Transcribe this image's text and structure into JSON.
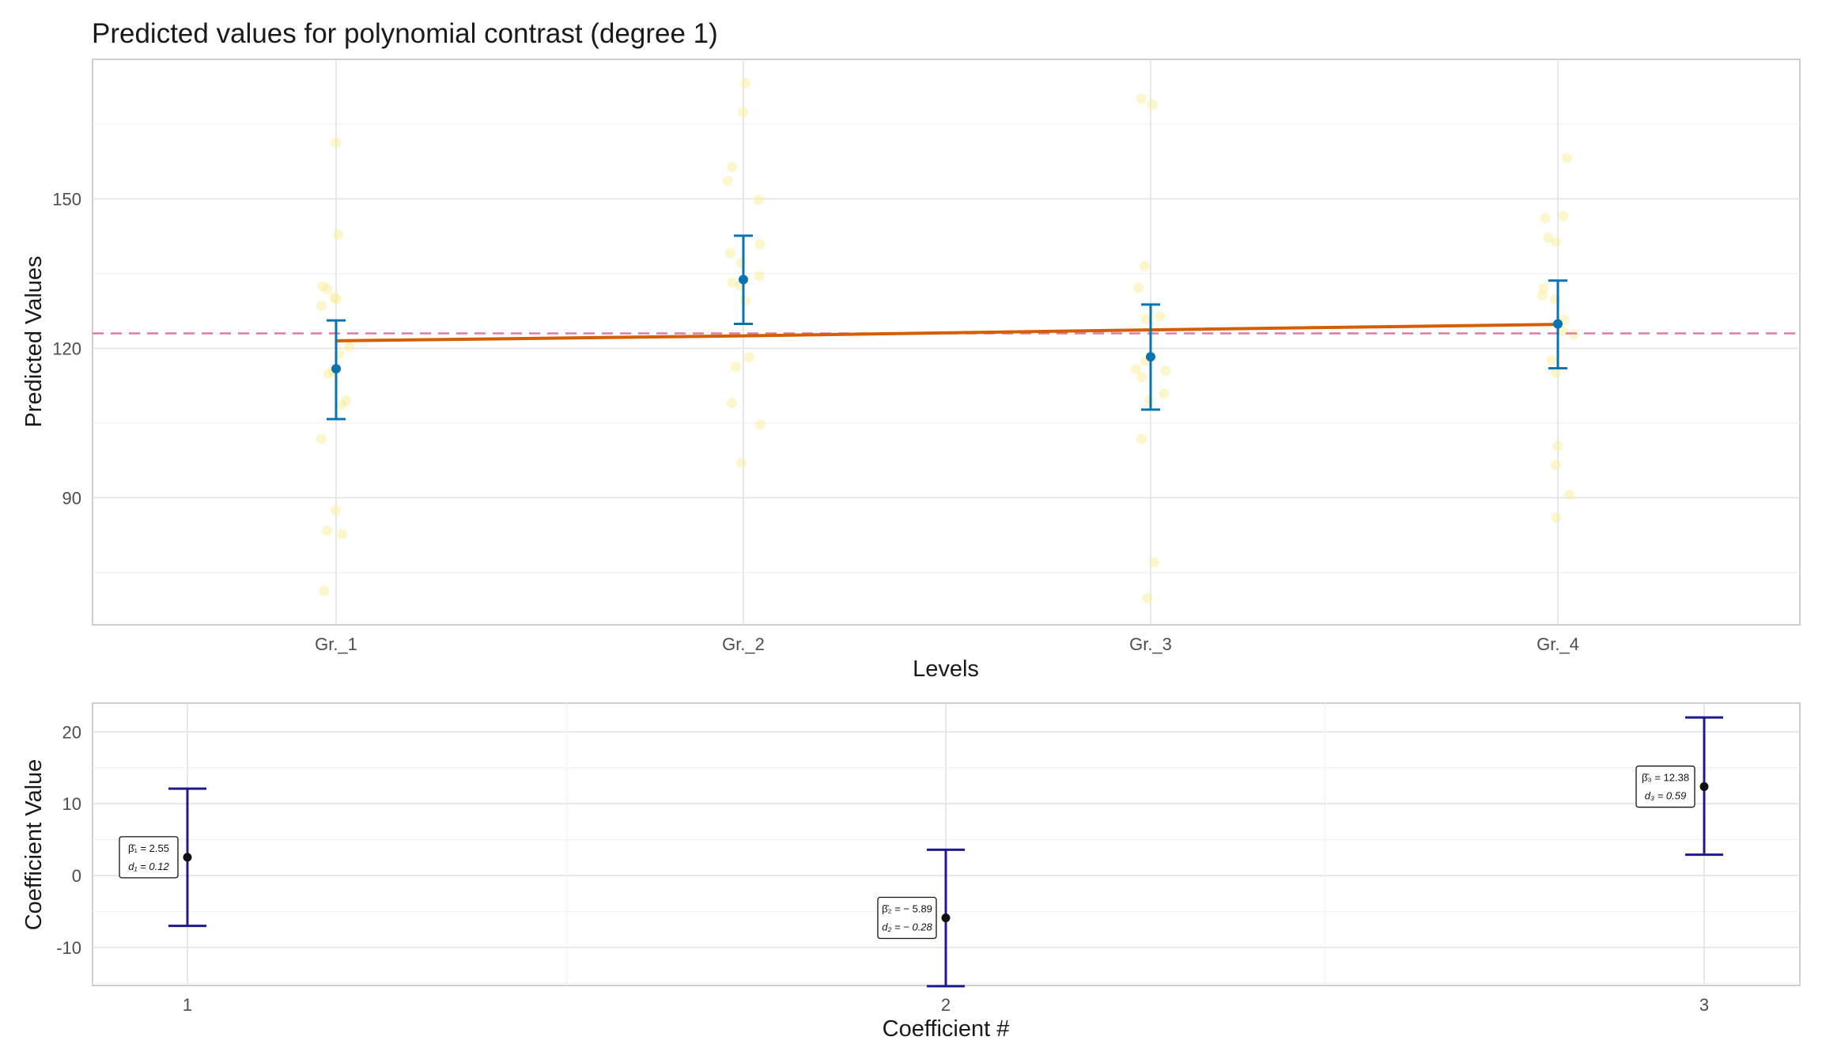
{
  "chart_data": [
    {
      "type": "scatter",
      "title": "Predicted values for polynomial contrast (degree 1)",
      "xlabel": "Levels",
      "ylabel": "Predicted Values",
      "categories": [
        "Gr._1",
        "Gr._2",
        "Gr._3",
        "Gr._4"
      ],
      "ylim": [
        64.5,
        178
      ],
      "yticks": [
        90,
        120,
        150
      ],
      "grid": true,
      "reference_line": {
        "value": 123,
        "style": "dashed",
        "color": "#e07aa4"
      },
      "trend_line": {
        "values": [
          121.5,
          122.5,
          123.7,
          124.8
        ],
        "color": "#d55e00"
      },
      "means": [
        {
          "category": "Gr._1",
          "mean": 115.9,
          "lower": 105.8,
          "upper": 125.6
        },
        {
          "category": "Gr._2",
          "mean": 133.8,
          "lower": 124.9,
          "upper": 142.6
        },
        {
          "category": "Gr._3",
          "mean": 118.3,
          "lower": 107.7,
          "upper": 128.8
        },
        {
          "category": "Gr._4",
          "mean": 124.9,
          "lower": 116.0,
          "upper": 133.6
        }
      ],
      "points": [
        {
          "x": 1,
          "y": 161.3
        },
        {
          "x": 1,
          "y": 142.8
        },
        {
          "x": 1,
          "y": 132.4
        },
        {
          "x": 1,
          "y": 131.9
        },
        {
          "x": 1,
          "y": 130.2
        },
        {
          "x": 1,
          "y": 129.8
        },
        {
          "x": 1,
          "y": 128.5
        },
        {
          "x": 1,
          "y": 120.3
        },
        {
          "x": 1,
          "y": 118.9
        },
        {
          "x": 1,
          "y": 115.4
        },
        {
          "x": 1,
          "y": 114.9
        },
        {
          "x": 1,
          "y": 109.5
        },
        {
          "x": 1,
          "y": 108.6
        },
        {
          "x": 1,
          "y": 101.8
        },
        {
          "x": 1,
          "y": 87.5
        },
        {
          "x": 1,
          "y": 83.4
        },
        {
          "x": 1,
          "y": 82.7
        },
        {
          "x": 1,
          "y": 71.3
        },
        {
          "x": 2,
          "y": 173.2
        },
        {
          "x": 2,
          "y": 167.4
        },
        {
          "x": 2,
          "y": 156.4
        },
        {
          "x": 2,
          "y": 153.6
        },
        {
          "x": 2,
          "y": 149.8
        },
        {
          "x": 2,
          "y": 140.9
        },
        {
          "x": 2,
          "y": 139.1
        },
        {
          "x": 2,
          "y": 137.2
        },
        {
          "x": 2,
          "y": 134.5
        },
        {
          "x": 2,
          "y": 133.2
        },
        {
          "x": 2,
          "y": 132.6
        },
        {
          "x": 2,
          "y": 129.5
        },
        {
          "x": 2,
          "y": 118.2
        },
        {
          "x": 2,
          "y": 116.3
        },
        {
          "x": 2,
          "y": 109.0
        },
        {
          "x": 2,
          "y": 104.7
        },
        {
          "x": 2,
          "y": 97.0
        },
        {
          "x": 3,
          "y": 170.1
        },
        {
          "x": 3,
          "y": 168.9
        },
        {
          "x": 3,
          "y": 136.5
        },
        {
          "x": 3,
          "y": 132.1
        },
        {
          "x": 3,
          "y": 126.4
        },
        {
          "x": 3,
          "y": 125.9
        },
        {
          "x": 3,
          "y": 117.4
        },
        {
          "x": 3,
          "y": 115.8
        },
        {
          "x": 3,
          "y": 115.5
        },
        {
          "x": 3,
          "y": 114.2
        },
        {
          "x": 3,
          "y": 110.9
        },
        {
          "x": 3,
          "y": 109.6
        },
        {
          "x": 3,
          "y": 101.8
        },
        {
          "x": 3,
          "y": 77.0
        },
        {
          "x": 3,
          "y": 69.8
        },
        {
          "x": 4,
          "y": 158.2
        },
        {
          "x": 4,
          "y": 146.5
        },
        {
          "x": 4,
          "y": 146.1
        },
        {
          "x": 4,
          "y": 142.2
        },
        {
          "x": 4,
          "y": 141.3
        },
        {
          "x": 4,
          "y": 132.0
        },
        {
          "x": 4,
          "y": 130.6
        },
        {
          "x": 4,
          "y": 129.8
        },
        {
          "x": 4,
          "y": 125.7
        },
        {
          "x": 4,
          "y": 123.4
        },
        {
          "x": 4,
          "y": 122.8
        },
        {
          "x": 4,
          "y": 117.6
        },
        {
          "x": 4,
          "y": 115.1
        },
        {
          "x": 4,
          "y": 100.4
        },
        {
          "x": 4,
          "y": 96.6
        },
        {
          "x": 4,
          "y": 90.6
        },
        {
          "x": 4,
          "y": 86.0
        }
      ],
      "colors": {
        "points": "#f6ec8e",
        "means": "#0a73b0",
        "panel_border": "#bdbdbd",
        "grid": "#e6e6e6"
      }
    },
    {
      "type": "scatter",
      "xlabel": "Coefficient #",
      "ylabel": "Coefficient Value",
      "categories": [
        "1",
        "2",
        "3"
      ],
      "ylim": [
        -15.3,
        24
      ],
      "yticks": [
        -10,
        0,
        10,
        20
      ],
      "grid": true,
      "coefficients": [
        {
          "index": "1",
          "estimate": 2.55,
          "lower": -7.0,
          "upper": 12.1,
          "beta_label": "β̂₁ = 2.55",
          "d_label": "d₁ = 0.12"
        },
        {
          "index": "2",
          "estimate": -5.89,
          "lower": -15.4,
          "upper": 3.6,
          "beta_label": "β̂₂ = − 5.89",
          "d_label": "d₂ = − 0.28"
        },
        {
          "index": "3",
          "estimate": 12.38,
          "lower": 2.9,
          "upper": 22.0,
          "beta_label": "β̂₃ = 12.38",
          "d_label": "d₃ = 0.59"
        }
      ],
      "colors": {
        "errorbar": "#1f1a8e",
        "point": "#111111",
        "panel_border": "#bdbdbd",
        "grid": "#e6e6e6"
      }
    }
  ]
}
